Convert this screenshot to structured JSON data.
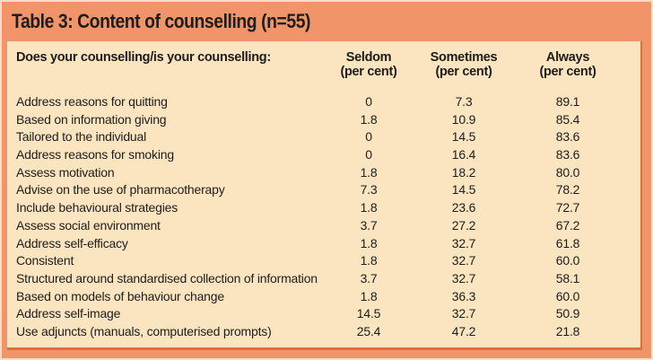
{
  "title": "Table 3: Content of counselling (n=55)",
  "table": {
    "question_header": "Does your counselling/is your counselling:",
    "columns": [
      {
        "label": "Seldom",
        "sub": "(per cent)"
      },
      {
        "label": "Sometimes",
        "sub": "(per cent)"
      },
      {
        "label": "Always",
        "sub": "(per cent)"
      }
    ],
    "rows": [
      {
        "label": "Address reasons for quitting",
        "seldom": "0",
        "sometimes": "7.3",
        "always": "89.1"
      },
      {
        "label": "Based on information giving",
        "seldom": "1.8",
        "sometimes": "10.9",
        "always": "85.4"
      },
      {
        "label": "Tailored to the individual",
        "seldom": "0",
        "sometimes": "14.5",
        "always": "83.6"
      },
      {
        "label": "Address reasons for smoking",
        "seldom": "0",
        "sometimes": "16.4",
        "always": "83.6"
      },
      {
        "label": "Assess motivation",
        "seldom": "1.8",
        "sometimes": "18.2",
        "always": "80.0"
      },
      {
        "label": "Advise on the use of pharmacotherapy",
        "seldom": "7.3",
        "sometimes": "14.5",
        "always": "78.2"
      },
      {
        "label": "Include behavioural strategies",
        "seldom": "1.8",
        "sometimes": "23.6",
        "always": "72.7"
      },
      {
        "label": "Assess social environment",
        "seldom": "3.7",
        "sometimes": "27.2",
        "always": "67.2"
      },
      {
        "label": "Address self-efficacy",
        "seldom": "1.8",
        "sometimes": "32.7",
        "always": "61.8"
      },
      {
        "label": "Consistent",
        "seldom": "1.8",
        "sometimes": "32.7",
        "always": "60.0"
      },
      {
        "label": "Structured around standardised collection of information",
        "seldom": "3.7",
        "sometimes": "32.7",
        "always": "58.1"
      },
      {
        "label": "Based on models of behaviour change",
        "seldom": "1.8",
        "sometimes": "36.3",
        "always": "60.0"
      },
      {
        "label": "Address self-image",
        "seldom": "14.5",
        "sometimes": "32.7",
        "always": "50.9"
      },
      {
        "label": "Use adjuncts (manuals, computerised prompts)",
        "seldom": "25.4",
        "sometimes": "47.2",
        "always": "21.8"
      }
    ]
  },
  "colors": {
    "frame": "#F2946A",
    "outer_edge": "#F9DCC6",
    "panel": "#FBE5C1",
    "panel_edge": "#DF6F3F",
    "ink": "#1D1D1B"
  }
}
